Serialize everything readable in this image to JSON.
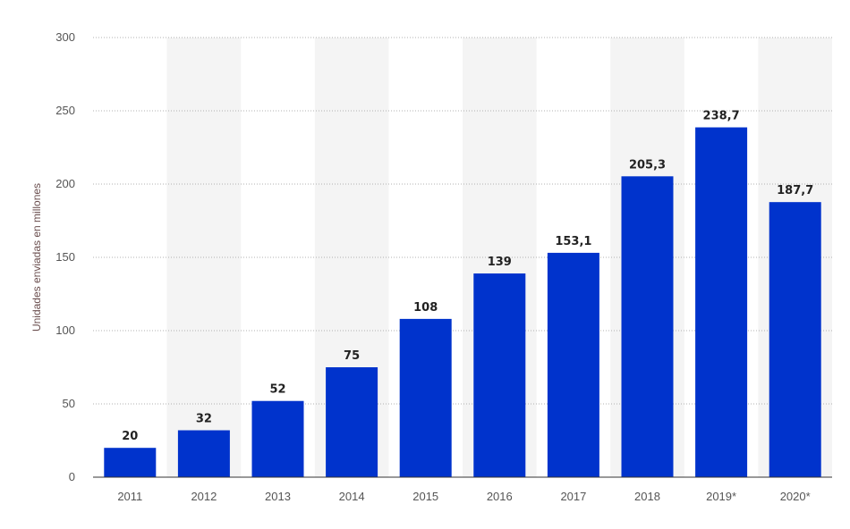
{
  "chart_data": {
    "type": "bar",
    "categories": [
      "2011",
      "2012",
      "2013",
      "2014",
      "2015",
      "2016",
      "2017",
      "2018",
      "2019*",
      "2020*"
    ],
    "values": [
      20,
      32,
      52,
      75,
      108,
      139,
      153.1,
      205.3,
      238.7,
      187.7
    ],
    "value_labels": [
      "20",
      "32",
      "52",
      "75",
      "108",
      "139",
      "153,1",
      "205,3",
      "238,7",
      "187,7"
    ],
    "title": "",
    "xlabel": "",
    "ylabel": "Unidades enviadas en millones",
    "ylim": [
      0,
      300
    ],
    "yticks": [
      0,
      50,
      100,
      150,
      200,
      250,
      300
    ],
    "grid": true,
    "grid_style": "dotted",
    "alternating_column_shading": true,
    "legend": "none",
    "colors": {
      "bar": "#0033cc",
      "grid": "#b0b0b0",
      "band": "#f4f4f4",
      "axis": "#333333"
    }
  }
}
